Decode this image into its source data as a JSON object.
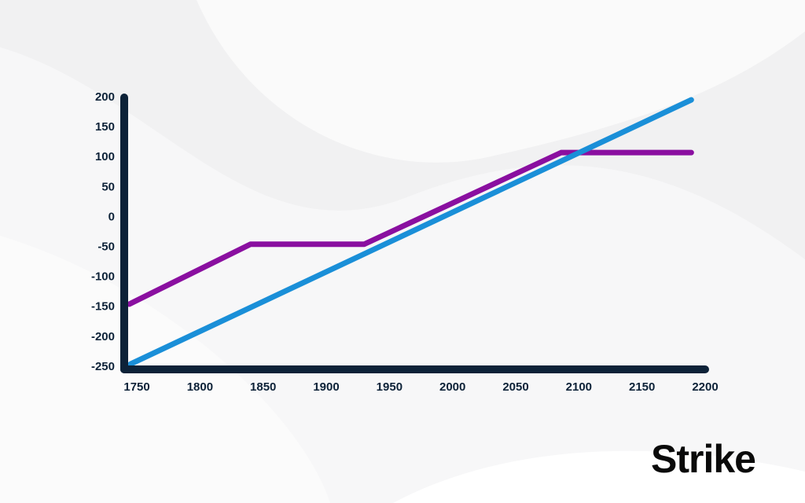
{
  "chart_data": {
    "type": "line",
    "xlim": [
      1740,
      2200
    ],
    "ylim": [
      -250,
      200
    ],
    "xticks": [
      1750,
      1800,
      1850,
      1900,
      1950,
      2000,
      2050,
      2100,
      2150,
      2200
    ],
    "yticks": [
      -250,
      -200,
      -150,
      -100,
      -50,
      0,
      50,
      100,
      150,
      200
    ],
    "series": [
      {
        "color": "#8a0fa0",
        "x": [
          1744,
          1840,
          1930,
          2086,
          2189
        ],
        "values": [
          -145,
          -45,
          -45,
          108,
          108
        ]
      },
      {
        "color": "#1a8fd8",
        "x": [
          1745,
          2189
        ],
        "values": [
          -245,
          196
        ]
      }
    ]
  },
  "logo": "Strike"
}
